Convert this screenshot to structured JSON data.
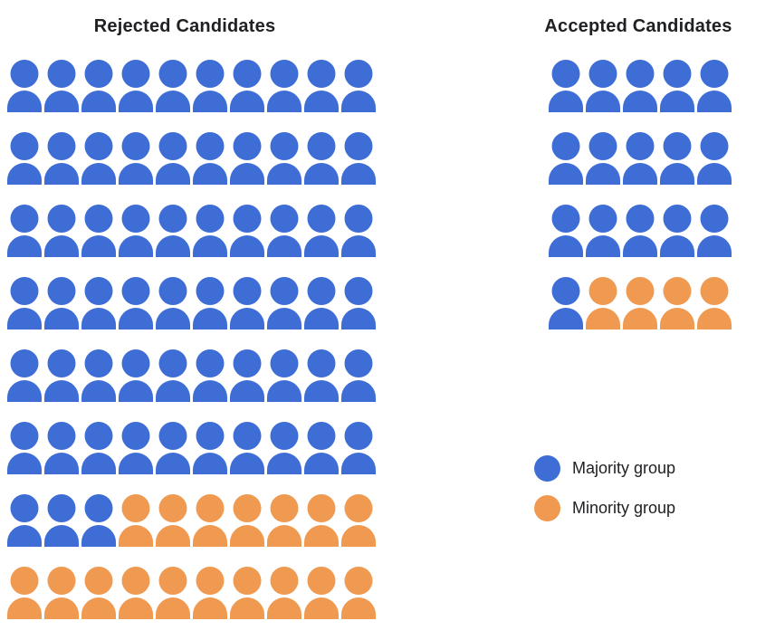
{
  "colors": {
    "majority": "#3E6DD6",
    "minority": "#F09A51"
  },
  "rejected": {
    "title": "Rejected Candidates",
    "columns": 10,
    "rows": [
      "BBBBBBBBBB",
      "BBBBBBBBBB",
      "BBBBBBBBBB",
      "BBBBBBBBBB",
      "BBBBBBBBBB",
      "BBBBBBBBBB",
      "BBBOOOOOOO",
      "OOOOOOOOOO"
    ]
  },
  "accepted": {
    "title": "Accepted Candidates",
    "columns": 5,
    "rows": [
      "BBBBB",
      "BBBBB",
      "BBBBB",
      "BOOOO"
    ]
  },
  "legend": [
    {
      "key": "majority",
      "label": "Majority group"
    },
    {
      "key": "minority",
      "label": "Minority group"
    }
  ],
  "chart_data": {
    "type": "pictogram",
    "categories": [
      "Rejected Candidates",
      "Accepted Candidates"
    ],
    "series": [
      {
        "name": "Majority group",
        "values": [
          63,
          16
        ]
      },
      {
        "name": "Minority group",
        "values": [
          17,
          4
        ]
      }
    ],
    "totals": [
      80,
      20
    ],
    "grid_shape": {
      "Rejected Candidates": "10x8",
      "Accepted Candidates": "5x4"
    },
    "unit": "1 icon = 1 candidate",
    "legend_position": "right-middle"
  }
}
